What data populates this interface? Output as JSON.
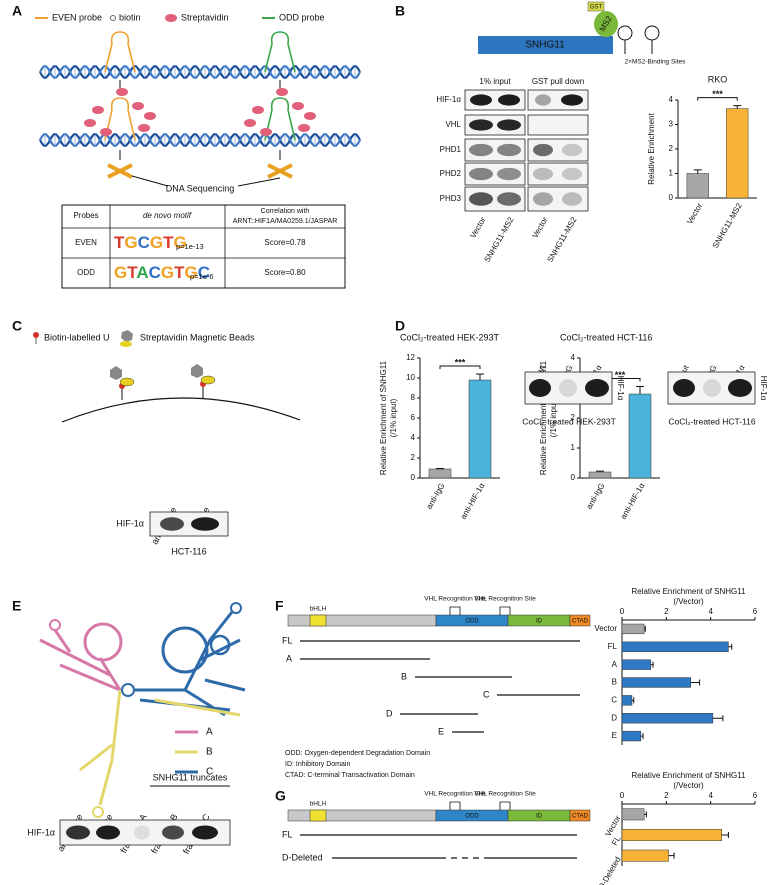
{
  "panel_labels": [
    "A",
    "B",
    "C",
    "D",
    "E",
    "F",
    "G"
  ],
  "panel_a": {
    "legend": [
      "EVEN probe",
      "biotin",
      "Streptavidin",
      "ODD probe"
    ],
    "step": "DNA Sequencing",
    "table": {
      "header": [
        "Probes",
        "de novo motif",
        [
          "Correlation with",
          "ARNT::HIF1A/MA0259.1/JASPAR"
        ]
      ],
      "rows": [
        [
          "EVEN",
          "TGCGTG",
          "p=1e-13",
          "Score=0.78"
        ],
        [
          "ODD",
          "GTACGTGC",
          "p=1e-6",
          "Score=0.80"
        ]
      ]
    }
  },
  "panel_b": {
    "construct": {
      "gene": "SNHG11",
      "protein": "MS2",
      "tag": "GST",
      "sites": "2×MS2-Binding Sites"
    },
    "blot": {
      "groups": [
        "1% input",
        "GST pull down"
      ],
      "proteins": [
        "HIF-1α",
        "VHL",
        "PHD1",
        "PHD2",
        "PHD3"
      ],
      "lanes": [
        "Vector",
        "SNHG11-MS2",
        "Vector",
        "SNHG11-MS2"
      ]
    },
    "chart": {
      "type": "bar",
      "title": "RKO",
      "ylabel": [
        "Relative Enrichment"
      ],
      "categories": [
        "Vector",
        "SNHG11-MS2"
      ],
      "values": [
        1.0,
        3.65
      ],
      "errors": [
        0.15,
        0.12
      ],
      "colors": [
        "#a6a6a6",
        "#f6b335"
      ],
      "ylim": [
        0,
        4
      ],
      "yticks": [
        0,
        1,
        2,
        3,
        4
      ],
      "significance": "***"
    }
  },
  "panel_c": {
    "legend": [
      "Biotin-labelled U",
      "Streptavidin Magnetic Beads"
    ],
    "blot": {
      "lanes": [
        "anti-sense",
        "sense"
      ],
      "protein": "HIF-1α",
      "cell_line": "HCT-116"
    }
  },
  "panel_d": {
    "charts": [
      {
        "type": "bar",
        "title": "CoCl₂-treated HEK-293T",
        "ylabel": [
          "Relative Enrichment of SNHG11",
          "(/1% input)"
        ],
        "categories": [
          "anti-IgG",
          "anti-HIF-1α"
        ],
        "values": [
          0.9,
          9.8
        ],
        "errors": [
          0.05,
          0.6
        ],
        "colors": [
          "#a6a6a6",
          "#4bb3d9"
        ],
        "ylim": [
          0,
          12
        ],
        "yticks": [
          0,
          2,
          4,
          6,
          8,
          10,
          12
        ],
        "significance": "***"
      },
      {
        "type": "bar",
        "title": "CoCl₂-treated HCT-116",
        "ylabel": [
          "Relative Enrichment of SNHG11",
          "(/1% input)"
        ],
        "categories": [
          "anti-IgG",
          "anti-HIF-1α"
        ],
        "values": [
          0.2,
          2.8
        ],
        "errors": [
          0.03,
          0.25
        ],
        "colors": [
          "#a6a6a6",
          "#4bb3d9"
        ],
        "ylim": [
          0,
          4
        ],
        "yticks": [
          0,
          1,
          2,
          3,
          4
        ],
        "significance": "***"
      }
    ],
    "blots": [
      {
        "lanes": [
          "1% input",
          "anti-IgG",
          "anti-HIF-1α"
        ],
        "protein": "HIF-1α",
        "caption": "CoCl₂-treated HEK-293T"
      },
      {
        "lanes": [
          "1% input",
          "anti-IgG",
          "anti-HIF-1α"
        ],
        "protein": "HIF-1α",
        "caption": "CoCl₂-treated HCT-116"
      }
    ]
  },
  "panel_e": {
    "legend": [
      "A",
      "B",
      "C"
    ],
    "blot": {
      "group": "SNHG11 truncates",
      "lanes": [
        "anti-sense",
        "sense",
        "fragment A",
        "fragment B",
        "fragment C"
      ],
      "protein": "HIF-1α"
    }
  },
  "panel_f": {
    "domains": {
      "labels": [
        "bHLH",
        "ODD",
        "ID",
        "CTAD"
      ],
      "sites": [
        "VHL Recognition Site",
        "VHL Recognition Site"
      ]
    },
    "fragments": [
      "FL",
      "A",
      "B",
      "C",
      "D",
      "E"
    ],
    "notes": [
      "ODD: Oxygen-dependent Degradation Domain",
      "ID: Inhibitory Domain",
      "CTAD: C-terminal Transactivation Domain"
    ],
    "chart": {
      "type": "bar",
      "orientation": "horizontal",
      "title": [
        "Relative Enrichment of SNHG11",
        "(/Vector)"
      ],
      "categories": [
        "Vector",
        "FL",
        "A",
        "B",
        "C",
        "D",
        "E"
      ],
      "values": [
        1.0,
        4.8,
        1.3,
        3.1,
        0.45,
        4.1,
        0.85
      ],
      "errors": [
        0.05,
        0.15,
        0.1,
        0.4,
        0.08,
        0.45,
        0.1
      ],
      "colors": [
        "#a6a6a6",
        "#2f78c4",
        "#2f78c4",
        "#2f78c4",
        "#2f78c4",
        "#2f78c4",
        "#2f78c4"
      ],
      "xlim": [
        0,
        6
      ],
      "xticks": [
        0,
        2,
        4,
        6
      ]
    }
  },
  "panel_g": {
    "domains": {
      "labels": [
        "bHLH",
        "ODD",
        "ID",
        "CTAD"
      ],
      "sites": [
        "VHL Recognition Site",
        "VHL Recognition Site"
      ]
    },
    "fragments": [
      "FL",
      "D-Deleted"
    ],
    "chart": {
      "type": "bar",
      "orientation": "horizontal",
      "title": [
        "Relative Enrichment of SNHG11",
        "(/Vector)"
      ],
      "categories": [
        "Vector",
        "FL",
        "D-Deleted"
      ],
      "values": [
        1.0,
        4.5,
        2.1
      ],
      "errors": [
        0.1,
        0.3,
        0.25
      ],
      "colors": [
        "#a6a6a6",
        "#f6b335",
        "#f6b335"
      ],
      "xlim": [
        0,
        6
      ],
      "xticks": [
        0,
        2,
        4,
        6
      ]
    }
  }
}
